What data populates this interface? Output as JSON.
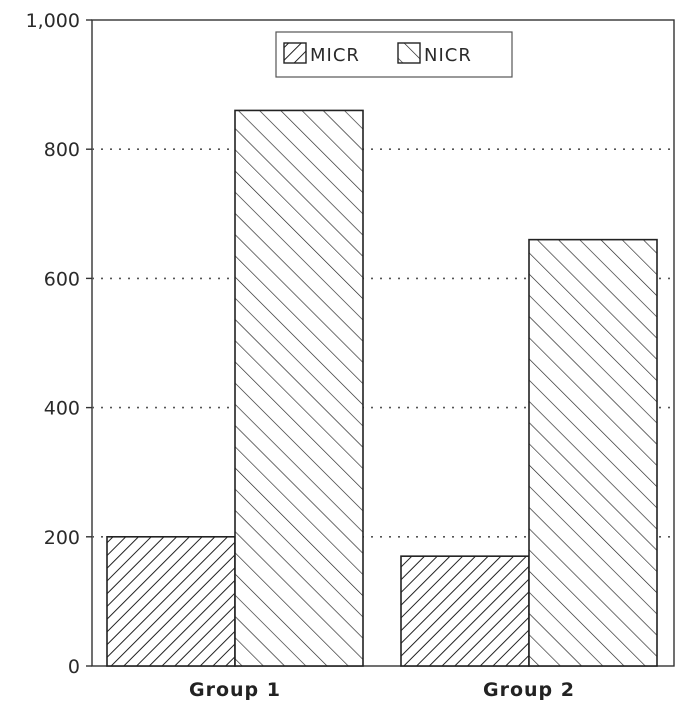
{
  "chart_data": {
    "type": "bar",
    "categories": [
      "Group 1",
      "Group 2"
    ],
    "series": [
      {
        "name": "MICR",
        "values": [
          200,
          170
        ],
        "pattern": "dense-hatch"
      },
      {
        "name": "NICR",
        "values": [
          860,
          660
        ],
        "pattern": "sparse-hatch"
      }
    ],
    "ylim": [
      0,
      1000
    ],
    "yticks": [
      0,
      200,
      400,
      600,
      800,
      1000
    ],
    "ytick_labels": [
      "0",
      "200",
      "400",
      "600",
      "800",
      "1,000"
    ],
    "grid": true,
    "legend_position": "top-center",
    "title": "",
    "xlabel": "",
    "ylabel": ""
  }
}
